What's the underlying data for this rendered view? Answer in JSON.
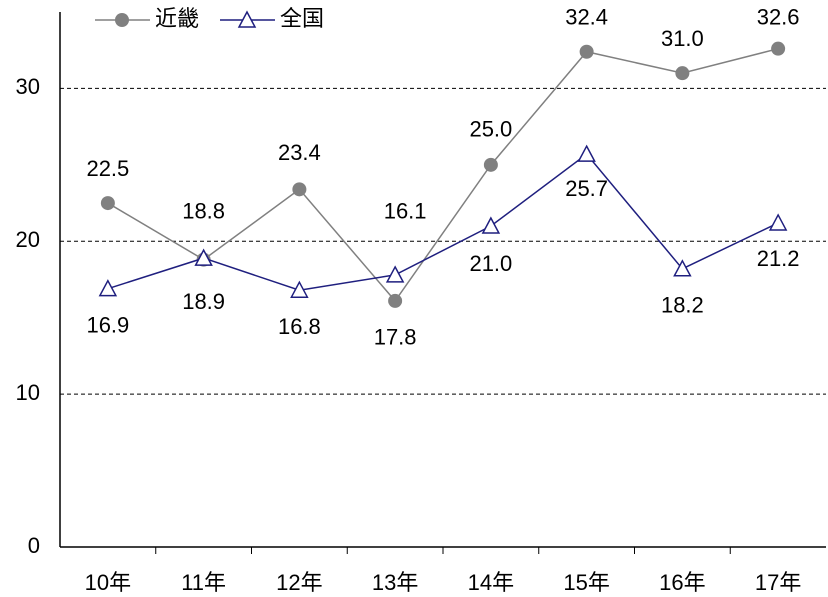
{
  "chart_data": {
    "type": "line",
    "categories": [
      "10年",
      "11年",
      "12年",
      "13年",
      "14年",
      "15年",
      "16年",
      "17年"
    ],
    "series": [
      {
        "name": "近畿",
        "color": "#808080",
        "marker": "circle",
        "values": [
          22.5,
          18.8,
          23.4,
          16.1,
          25.0,
          32.4,
          31.0,
          32.6
        ],
        "value_labels": [
          "22.5",
          "18.8",
          "23.4",
          "16.1",
          "25.0",
          "32.4",
          "31.0",
          "32.6"
        ]
      },
      {
        "name": "全国",
        "color": "#1f1f7f",
        "marker": "triangle",
        "values": [
          16.9,
          18.9,
          16.8,
          17.8,
          21.0,
          25.7,
          18.2,
          21.2
        ],
        "value_labels": [
          "16.9",
          "18.9",
          "16.8",
          "17.8",
          "21.0",
          "25.7",
          "18.2",
          "21.2"
        ]
      }
    ],
    "ylim": [
      0,
      35
    ],
    "yticks": [
      0,
      10,
      20,
      30
    ],
    "grid": true,
    "legend": "top-left"
  }
}
